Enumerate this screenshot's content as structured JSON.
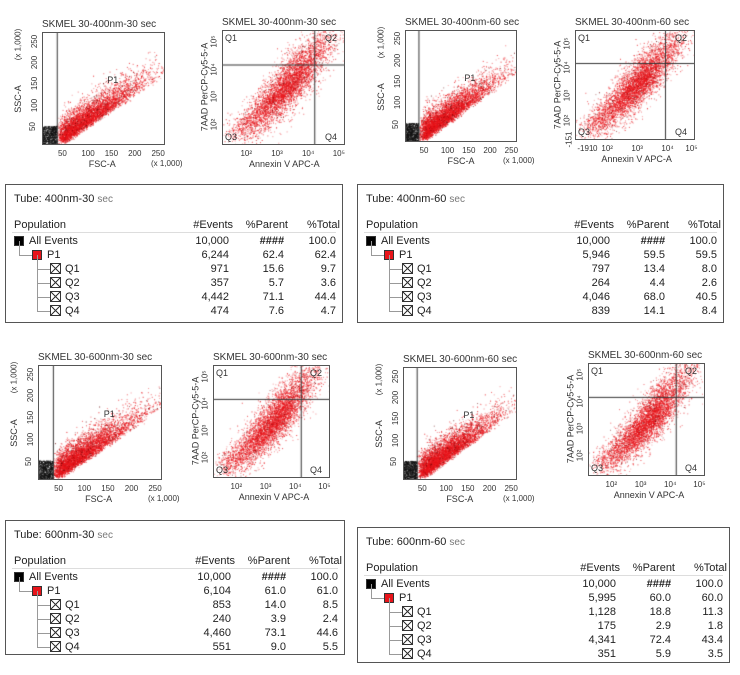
{
  "colors": {
    "gated": "#e8141a",
    "ungated": "#111111",
    "all_events": "#000000",
    "p1": "#e8141a"
  },
  "plots": [
    {
      "title": "SKMEL 30-400nm-30 sec",
      "type": "fsc-ssc",
      "xlabel": "FSC-A",
      "ylabel": "SSC-A",
      "scale": "(x 1,000)",
      "gate": "P1",
      "xticks": [
        "50",
        "100",
        "150",
        "200",
        "250"
      ],
      "yticks": [
        "50",
        "100",
        "150",
        "200",
        "250"
      ]
    },
    {
      "title": "SKMEL 30-400nm-30 sec",
      "type": "quadrant",
      "xlabel": "Annexin V APC-A",
      "ylabel": "7AAD PerCP-Cy5-5-A",
      "quadrants": [
        "Q1",
        "Q2",
        "Q3",
        "Q4"
      ],
      "xticks": [
        "10²",
        "10³",
        "10⁴",
        "10⁵"
      ],
      "yticks": [
        "10²",
        "10³",
        "10⁴",
        "10⁵"
      ]
    },
    {
      "title": "SKMEL 30-400nm-60 sec",
      "type": "fsc-ssc",
      "xlabel": "FSC-A",
      "ylabel": "SSC-A",
      "scale": "(x 1,000)",
      "gate": "P1",
      "xticks": [
        "50",
        "100",
        "150",
        "200",
        "250"
      ],
      "yticks": [
        "50",
        "100",
        "150",
        "200",
        "250"
      ]
    },
    {
      "title": "SKMEL 30-400nm-60 sec",
      "type": "quadrant",
      "xlabel": "Annexin V APC-A",
      "ylabel": "7AAD PerCP-Cy5-5-A",
      "quadrants": [
        "Q1",
        "Q2",
        "Q3",
        "Q4"
      ],
      "xticks": [
        "-191",
        "0",
        "10²",
        "10³",
        "10⁴",
        "10⁵"
      ],
      "yticks": [
        "-151",
        "10²",
        "10³",
        "10⁴",
        "10⁵"
      ]
    },
    {
      "title": "SKMEL 30-600nm-30 sec",
      "type": "fsc-ssc",
      "xlabel": "FSC-A",
      "ylabel": "SSC-A",
      "scale": "(x 1,000)",
      "gate": "P1",
      "xticks": [
        "50",
        "100",
        "150",
        "200",
        "250"
      ],
      "yticks": [
        "50",
        "100",
        "150",
        "200",
        "250"
      ]
    },
    {
      "title": "SKMEL 30-600nm-30 sec",
      "type": "quadrant",
      "xlabel": "Annexin V APC-A",
      "ylabel": "7AAD PerCP-Cy5-5-A",
      "quadrants": [
        "Q1",
        "Q2",
        "Q3",
        "Q4"
      ],
      "xticks": [
        "10²",
        "10³",
        "10⁴",
        "10⁵"
      ],
      "yticks": [
        "10²",
        "10³",
        "10⁴",
        "10⁵"
      ]
    },
    {
      "title": "SKMEL 30-600nm-60 sec",
      "type": "fsc-ssc",
      "xlabel": "FSC-A",
      "ylabel": "SSC-A",
      "scale": "(x 1,000)",
      "gate": "P1",
      "xticks": [
        "50",
        "100",
        "150",
        "200",
        "250"
      ],
      "yticks": [
        "50",
        "100",
        "150",
        "200",
        "250"
      ]
    },
    {
      "title": "SKMEL 30-600nm-60 sec",
      "type": "quadrant",
      "xlabel": "Annexin V APC-A",
      "ylabel": "7AAD PerCP-Cy5-5-A",
      "quadrants": [
        "Q1",
        "Q2",
        "Q3",
        "Q4"
      ],
      "xticks": [
        "10²",
        "10³",
        "10⁴",
        "10⁵"
      ],
      "yticks": [
        "10²",
        "10³",
        "10⁴",
        "10⁵"
      ]
    }
  ],
  "tables": [
    {
      "tube_label": "Tube:",
      "tube": "400nm-30",
      "tube_unit": "sec",
      "headers": [
        "Population",
        "#Events",
        "%Parent",
        "%Total"
      ],
      "rows": [
        [
          "All Events",
          "10,000",
          "####",
          "100.0"
        ],
        [
          "P1",
          "6,244",
          "62.4",
          "62.4"
        ],
        [
          "Q1",
          "971",
          "15.6",
          "9.7"
        ],
        [
          "Q2",
          "357",
          "5.7",
          "3.6"
        ],
        [
          "Q3",
          "4,442",
          "71.1",
          "44.4"
        ],
        [
          "Q4",
          "474",
          "7.6",
          "4.7"
        ]
      ]
    },
    {
      "tube_label": "Tube:",
      "tube": "400nm-60",
      "tube_unit": "sec",
      "headers": [
        "Population",
        "#Events",
        "%Parent",
        "%Total"
      ],
      "rows": [
        [
          "All Events",
          "10,000",
          "####",
          "100.0"
        ],
        [
          "P1",
          "5,946",
          "59.5",
          "59.5"
        ],
        [
          "Q1",
          "797",
          "13.4",
          "8.0"
        ],
        [
          "Q2",
          "264",
          "4.4",
          "2.6"
        ],
        [
          "Q3",
          "4,046",
          "68.0",
          "40.5"
        ],
        [
          "Q4",
          "839",
          "14.1",
          "8.4"
        ]
      ]
    },
    {
      "tube_label": "Tube:",
      "tube": "600nm-30",
      "tube_unit": "sec",
      "headers": [
        "Population",
        "#Events",
        "%Parent",
        "%Total"
      ],
      "rows": [
        [
          "All Events",
          "10,000",
          "####",
          "100.0"
        ],
        [
          "P1",
          "6,104",
          "61.0",
          "61.0"
        ],
        [
          "Q1",
          "853",
          "14.0",
          "8.5"
        ],
        [
          "Q2",
          "240",
          "3.9",
          "2.4"
        ],
        [
          "Q3",
          "4,460",
          "73.1",
          "44.6"
        ],
        [
          "Q4",
          "551",
          "9.0",
          "5.5"
        ]
      ]
    },
    {
      "tube_label": "Tube:",
      "tube": "600nm-60",
      "tube_unit": "sec",
      "headers": [
        "Population",
        "#Events",
        "%Parent",
        "%Total"
      ],
      "rows": [
        [
          "All Events",
          "10,000",
          "####",
          "100.0"
        ],
        [
          "P1",
          "5,995",
          "60.0",
          "60.0"
        ],
        [
          "Q1",
          "1,128",
          "18.8",
          "11.3"
        ],
        [
          "Q2",
          "175",
          "2.9",
          "1.8"
        ],
        [
          "Q3",
          "4,341",
          "72.4",
          "43.4"
        ],
        [
          "Q4",
          "351",
          "5.9",
          "3.5"
        ]
      ]
    }
  ]
}
